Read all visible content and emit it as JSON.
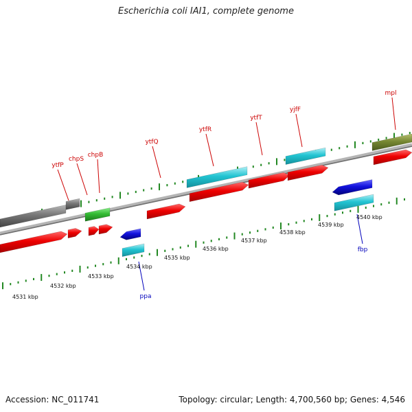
{
  "title": "Escherichia coli IAI1, complete genome",
  "accession_text": "Accession: NC_011741",
  "topology_text": "Topology: circular; Length: 4,700,560 bp; Genes: 4,546",
  "colors": {
    "forward_cds": "#ee0000",
    "reverse_cds": "#1111dd",
    "forward_rna": "#22bbcc",
    "other_gene": "#33aa33",
    "olive_gene": "#778833",
    "gray_gene": "#777777",
    "backbone": "#8a8a8a",
    "tick": "#228822",
    "label_forward": "#cc0000",
    "label_reverse": "#0000bb"
  },
  "kbp_labels": [
    "4531 kbp",
    "4532 kbp",
    "4533 kbp",
    "4534 kbp",
    "4535 kbp",
    "4536 kbp",
    "4537 kbp",
    "4538 kbp",
    "4539 kbp",
    "4540 kbp"
  ],
  "gene_labels": [
    {
      "text": "ytfP",
      "strand": "forward"
    },
    {
      "text": "chpS",
      "strand": "forward"
    },
    {
      "text": "chpB",
      "strand": "forward"
    },
    {
      "text": "ytfQ",
      "strand": "forward"
    },
    {
      "text": "ytfR",
      "strand": "forward"
    },
    {
      "text": "ytfT",
      "strand": "forward"
    },
    {
      "text": "yjfF",
      "strand": "forward"
    },
    {
      "text": "mpl",
      "strand": "forward"
    },
    {
      "text": "ppa",
      "strand": "reverse"
    },
    {
      "text": "fbp",
      "strand": "reverse"
    }
  ]
}
